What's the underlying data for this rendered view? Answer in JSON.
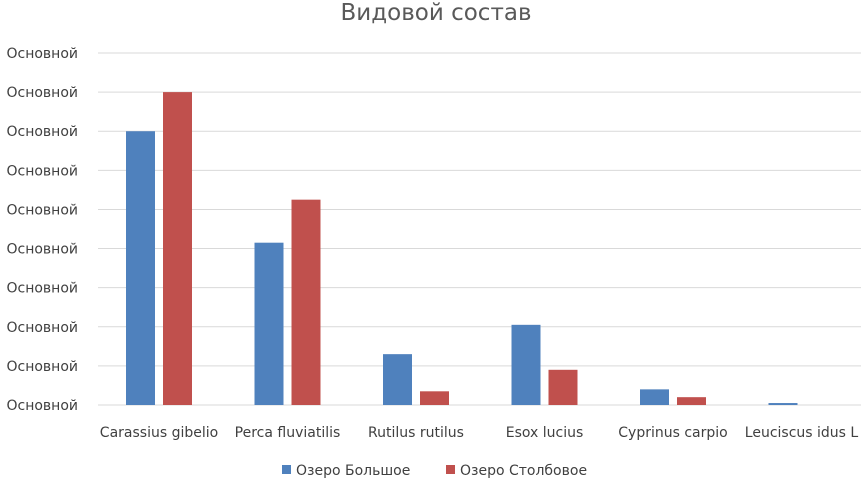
{
  "chart_data": {
    "type": "bar",
    "title": "Видовой состав",
    "xlabel": "",
    "ylabel": "",
    "categories": [
      "Carassius gibelio",
      "Perca fluviatilis",
      "Rutilus rutilus",
      "Esox lucius",
      "Cyprinus carpio",
      "Leuciscus idus L"
    ],
    "y_tick_labels": [
      "Основной",
      "Основной",
      "Основной",
      "Основной",
      "Основной",
      "Основной",
      "Основной",
      "Основной",
      "Основной",
      "Основной"
    ],
    "ylim": [
      0,
      9
    ],
    "grid": true,
    "legend_position": "bottom",
    "series": [
      {
        "name": "Озеро Большое",
        "color": "#4f81bd",
        "values": [
          7.0,
          4.15,
          1.3,
          2.05,
          0.4,
          0.05
        ]
      },
      {
        "name": "Озеро Столбовое",
        "color": "#c0504d",
        "values": [
          8.0,
          5.25,
          0.35,
          0.9,
          0.2,
          0.0
        ]
      }
    ]
  }
}
